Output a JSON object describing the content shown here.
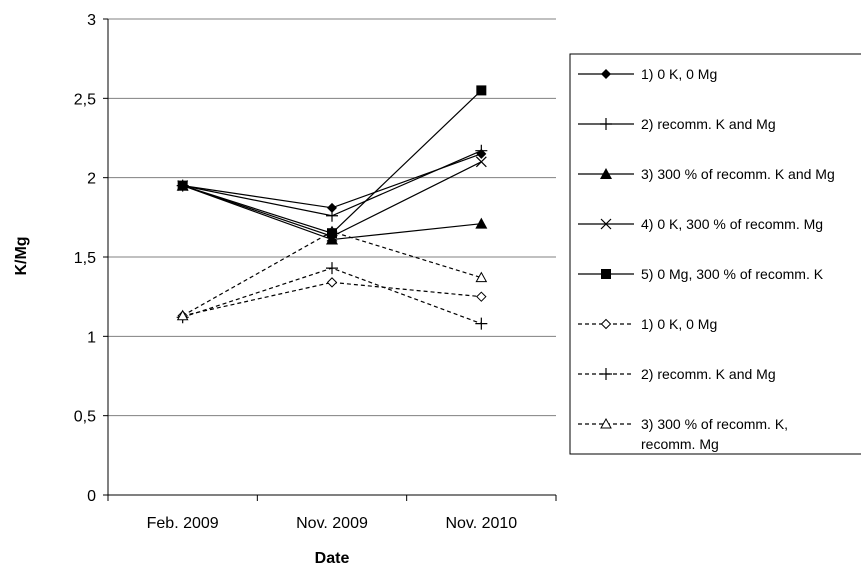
{
  "chart_data": {
    "type": "line",
    "xlabel": "Date",
    "ylabel": "K/Mg",
    "categories": [
      "Feb. 2009",
      "Nov. 2009",
      "Nov. 2010"
    ],
    "ylim": [
      0,
      3
    ],
    "yticks": [
      "0",
      "0,5",
      "1",
      "1,5",
      "2",
      "2,5",
      "3"
    ],
    "grid": "horizontal",
    "legend_position": "right",
    "series": [
      {
        "name": "1) 0 K, 0 Mg",
        "values": [
          1.95,
          1.81,
          2.15
        ],
        "marker": "diamond-filled",
        "line": "solid"
      },
      {
        "name": "2) recomm. K and Mg",
        "values": [
          1.95,
          1.76,
          2.17
        ],
        "marker": "plus",
        "line": "solid"
      },
      {
        "name": "3) 300 % of recomm. K and Mg",
        "values": [
          1.95,
          1.61,
          1.71
        ],
        "marker": "triangle-filled",
        "line": "solid"
      },
      {
        "name": "4) 0 K, 300 % of recomm. Mg",
        "values": [
          1.95,
          1.63,
          2.1
        ],
        "marker": "x",
        "line": "solid"
      },
      {
        "name": "5) 0 Mg, 300 % of recomm.  K",
        "values": [
          1.95,
          1.65,
          2.55
        ],
        "marker": "square-filled",
        "line": "solid"
      },
      {
        "name": "1) 0 K, 0 Mg",
        "values": [
          1.13,
          1.34,
          1.25
        ],
        "marker": "diamond-open",
        "line": "dashed"
      },
      {
        "name": "2) recomm. K and Mg",
        "values": [
          1.12,
          1.43,
          1.08
        ],
        "marker": "plus",
        "line": "dashed"
      },
      {
        "name": "3) 300 % of recomm. K, recomm. Mg",
        "name_lines": [
          "3) 300 % of recomm. K,",
          "recomm. Mg"
        ],
        "values": [
          1.13,
          1.66,
          1.37
        ],
        "marker": "triangle-open",
        "line": "dashed"
      }
    ]
  }
}
